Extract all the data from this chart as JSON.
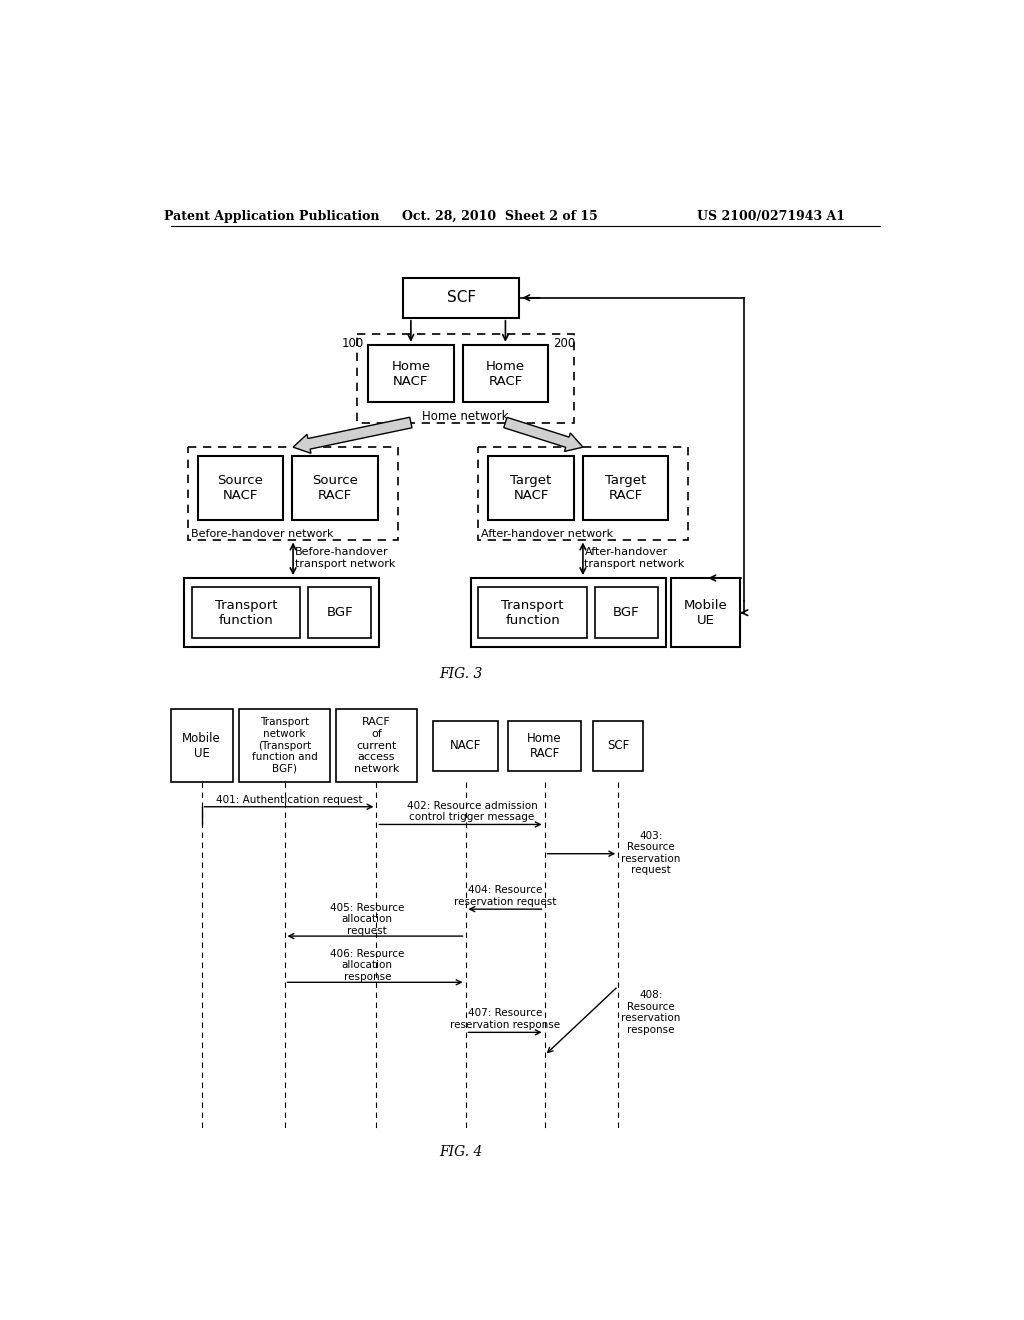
{
  "header_left": "Patent Application Publication",
  "header_center": "Oct. 28, 2010  Sheet 2 of 15",
  "header_right": "US 2100/0271943 A1",
  "fig3_label": "FIG. 3",
  "fig4_label": "FIG. 4",
  "background": "#ffffff"
}
